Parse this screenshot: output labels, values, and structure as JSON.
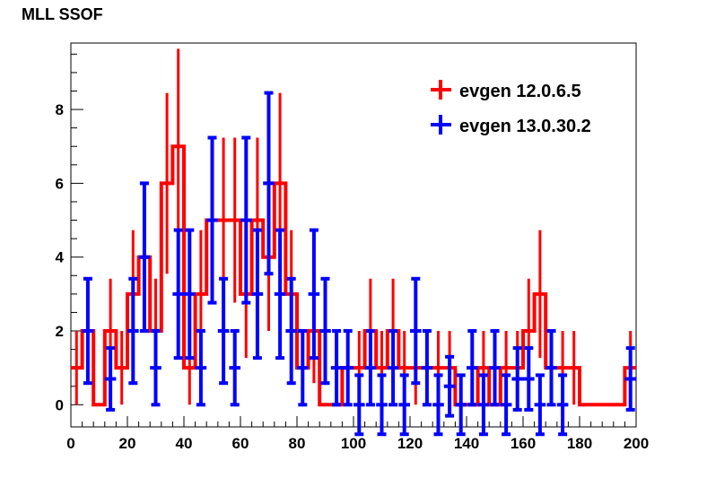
{
  "chart_data": {
    "type": "histogram",
    "title": "MLL SSOF",
    "xlabel": "",
    "ylabel": "",
    "xlim": [
      0,
      200
    ],
    "ylim": [
      -0.6,
      9.8
    ],
    "xticks": [
      "0",
      "20",
      "40",
      "60",
      "80",
      "100",
      "120",
      "140",
      "160",
      "180",
      "200"
    ],
    "yticks": [
      "0",
      "2",
      "4",
      "6",
      "8"
    ],
    "legend_position": "top-right",
    "bin_width": 4,
    "series": [
      {
        "name": "evgen 12.0.6.5",
        "color": "#ff0000",
        "style": "step",
        "bins": [
          [
            0,
            1
          ],
          [
            4,
            2
          ],
          [
            8,
            0
          ],
          [
            12,
            2
          ],
          [
            16,
            1
          ],
          [
            20,
            3
          ],
          [
            24,
            4
          ],
          [
            28,
            2
          ],
          [
            32,
            6
          ],
          [
            36,
            7
          ],
          [
            40,
            1
          ],
          [
            44,
            3
          ],
          [
            48,
            5
          ],
          [
            52,
            5
          ],
          [
            56,
            5
          ],
          [
            60,
            3
          ],
          [
            64,
            5
          ],
          [
            68,
            4
          ],
          [
            72,
            6
          ],
          [
            76,
            3
          ],
          [
            80,
            1
          ],
          [
            84,
            2
          ],
          [
            88,
            0
          ],
          [
            92,
            0
          ],
          [
            96,
            1
          ],
          [
            100,
            1
          ],
          [
            104,
            2
          ],
          [
            108,
            1
          ],
          [
            112,
            2
          ],
          [
            116,
            1
          ],
          [
            120,
            1
          ],
          [
            124,
            1
          ],
          [
            128,
            1
          ],
          [
            132,
            1
          ],
          [
            136,
            0
          ],
          [
            140,
            0
          ],
          [
            144,
            1
          ],
          [
            148,
            0
          ],
          [
            152,
            1
          ],
          [
            156,
            1
          ],
          [
            160,
            2
          ],
          [
            164,
            3
          ],
          [
            168,
            1
          ],
          [
            172,
            1
          ],
          [
            176,
            1
          ],
          [
            180,
            0
          ],
          [
            184,
            0
          ],
          [
            188,
            0
          ],
          [
            192,
            0
          ],
          [
            196,
            1
          ]
        ]
      },
      {
        "name": "evgen 13.0.30.2",
        "color": "#0000ff",
        "style": "errorbar",
        "points": [
          [
            6,
            2
          ],
          [
            14,
            0.7
          ],
          [
            22,
            2
          ],
          [
            26,
            4
          ],
          [
            30,
            1
          ],
          [
            38,
            3
          ],
          [
            42,
            3
          ],
          [
            46,
            1
          ],
          [
            50,
            5
          ],
          [
            54,
            2
          ],
          [
            58,
            1
          ],
          [
            62,
            5
          ],
          [
            66,
            3
          ],
          [
            70,
            6
          ],
          [
            74,
            3
          ],
          [
            78,
            2
          ],
          [
            82,
            1
          ],
          [
            86,
            3
          ],
          [
            90,
            2
          ],
          [
            94,
            1
          ],
          [
            98,
            1
          ],
          [
            102,
            0
          ],
          [
            106,
            1
          ],
          [
            110,
            0
          ],
          [
            114,
            1
          ],
          [
            118,
            0
          ],
          [
            122,
            2
          ],
          [
            126,
            1
          ],
          [
            130,
            0
          ],
          [
            134,
            0.5
          ],
          [
            138,
            0
          ],
          [
            142,
            1
          ],
          [
            146,
            0
          ],
          [
            150,
            1
          ],
          [
            154,
            0
          ],
          [
            158,
            0.7
          ],
          [
            162,
            0.7
          ],
          [
            166,
            0
          ],
          [
            170,
            1
          ],
          [
            174,
            0
          ],
          [
            198,
            0.7
          ]
        ]
      }
    ]
  }
}
